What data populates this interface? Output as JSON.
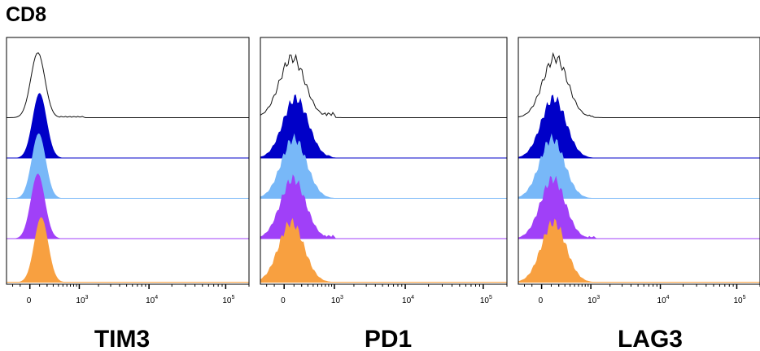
{
  "figure_title": "CD8",
  "colors": {
    "control": "#111111",
    "dark_blue": "#0000c8",
    "light_blue": "#78b8f8",
    "purple": "#a040f8",
    "orange": "#f8a040"
  },
  "chart_data": [
    {
      "type": "area",
      "xlabel": "TIM3",
      "x_tick_labels": [
        {
          "base": "0",
          "exp": ""
        },
        {
          "base": "10",
          "exp": "3"
        },
        {
          "base": "10",
          "exp": "4"
        },
        {
          "base": "10",
          "exp": "5"
        }
      ],
      "x_ticks": [
        0,
        1000,
        10000,
        100000
      ],
      "scale": "biexponential",
      "series": [
        {
          "color_key": "control",
          "filled": false,
          "peak_x": 80,
          "peak_sharpness": "narrow",
          "tail": [
            [
              1200,
              0.02
            ]
          ]
        },
        {
          "color_key": "dark_blue",
          "filled": true,
          "peak_x": 100,
          "peak_sharpness": "narrow",
          "tail": []
        },
        {
          "color_key": "light_blue",
          "filled": true,
          "peak_x": 90,
          "peak_sharpness": "narrow",
          "tail": []
        },
        {
          "color_key": "purple",
          "filled": true,
          "peak_x": 80,
          "peak_sharpness": "narrow",
          "tail": []
        },
        {
          "color_key": "orange",
          "filled": true,
          "peak_x": 120,
          "peak_sharpness": "narrow",
          "tail": []
        }
      ]
    },
    {
      "type": "area",
      "xlabel": "PD1",
      "x_tick_labels": [
        {
          "base": "0",
          "exp": ""
        },
        {
          "base": "10",
          "exp": "3"
        },
        {
          "base": "10",
          "exp": "4"
        },
        {
          "base": "10",
          "exp": "5"
        }
      ],
      "x_ticks": [
        0,
        1000,
        10000,
        100000
      ],
      "scale": "biexponential",
      "series": [
        {
          "color_key": "control",
          "filled": false,
          "peak_x": 80,
          "peak_sharpness": "broad",
          "tail": [
            [
              1000,
              0.08
            ]
          ]
        },
        {
          "color_key": "dark_blue",
          "filled": true,
          "peak_x": 120,
          "peak_sharpness": "broad",
          "tail": [
            [
              900,
              0.05
            ]
          ]
        },
        {
          "color_key": "light_blue",
          "filled": true,
          "peak_x": 100,
          "peak_sharpness": "broad",
          "tail": []
        },
        {
          "color_key": "purple",
          "filled": true,
          "peak_x": 90,
          "peak_sharpness": "broad",
          "tail": [
            [
              1000,
              0.06
            ]
          ]
        },
        {
          "color_key": "orange",
          "filled": true,
          "peak_x": 70,
          "peak_sharpness": "broad",
          "tail": []
        }
      ]
    },
    {
      "type": "area",
      "xlabel": "LAG3",
      "x_tick_labels": [
        {
          "base": "0",
          "exp": ""
        },
        {
          "base": "10",
          "exp": "3"
        },
        {
          "base": "10",
          "exp": "4"
        },
        {
          "base": "10",
          "exp": "5"
        }
      ],
      "x_ticks": [
        0,
        1000,
        10000,
        100000
      ],
      "scale": "biexponential",
      "series": [
        {
          "color_key": "control",
          "filled": false,
          "peak_x": 150,
          "peak_sharpness": "broad",
          "tail": [
            [
              1100,
              0.04
            ]
          ]
        },
        {
          "color_key": "dark_blue",
          "filled": true,
          "peak_x": 130,
          "peak_sharpness": "broad",
          "tail": []
        },
        {
          "color_key": "light_blue",
          "filled": true,
          "peak_x": 110,
          "peak_sharpness": "broad",
          "tail": []
        },
        {
          "color_key": "purple",
          "filled": true,
          "peak_x": 120,
          "peak_sharpness": "broad",
          "tail": [
            [
              1200,
              0.04
            ]
          ]
        },
        {
          "color_key": "orange",
          "filled": true,
          "peak_x": 130,
          "peak_sharpness": "broad",
          "tail": []
        }
      ]
    }
  ]
}
